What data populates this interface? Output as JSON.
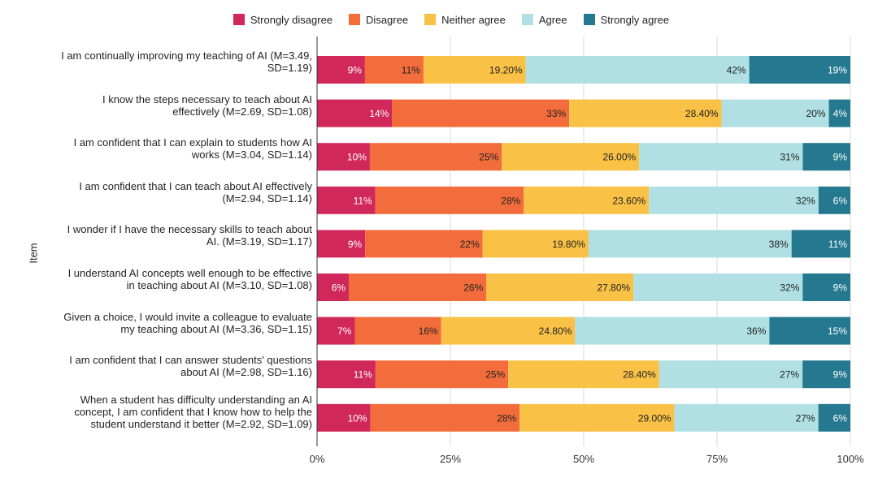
{
  "chart_data": {
    "type": "bar",
    "orientation": "horizontal",
    "stacked": true,
    "ylabel": "Item",
    "xlabel": "",
    "xlim": [
      0,
      100
    ],
    "x_ticks": [
      "0%",
      "25%",
      "50%",
      "75%",
      "100%"
    ],
    "legend_position": "top-center",
    "categories": [
      "I am continually improving my teaching of AI (M=3.49, SD=1.19)",
      "I know the steps necessary to teach about AI effectively (M=2.69, SD=1.08)",
      "I am confident that I can explain to students how AI works (M=3.04, SD=1.14)",
      "I am confident that I can teach about AI effectively (M=2.94, SD=1.14)",
      "I wonder if I have the necessary skills to teach about AI. (M=3.19, SD=1.17)",
      "I understand AI concepts well enough to be effective in teaching about AI (M=3.10, SD=1.08)",
      "Given a choice, I would invite a colleague to evaluate my teaching about AI (M=3.36, SD=1.15)",
      "I am confident that I can answer students' questions about AI (M=2.98, SD=1.16)",
      "When a student has difficulty understanding an AI concept, I am confident that I know how to help the student understand it better (M=2.92, SD=1.09)"
    ],
    "category_lines": [
      [
        "I am continually improving my teaching of AI (M=3.49,",
        "SD=1.19)"
      ],
      [
        "I know the steps necessary to teach about AI",
        "effectively (M=2.69, SD=1.08)"
      ],
      [
        "I am confident that I can explain to students how AI",
        "works (M=3.04, SD=1.14)"
      ],
      [
        "I am confident that I can teach about AI effectively",
        "(M=2.94, SD=1.14)"
      ],
      [
        "I wonder if I have the necessary skills to teach about",
        "AI. (M=3.19, SD=1.17)"
      ],
      [
        "I understand AI concepts well enough to be effective",
        "in teaching about AI (M=3.10, SD=1.08)"
      ],
      [
        "Given a choice, I would invite a colleague to evaluate",
        "my teaching about AI (M=3.36, SD=1.15)"
      ],
      [
        "I am confident that I can answer students' questions",
        "about AI (M=2.98, SD=1.16)"
      ],
      [
        "When a student has difficulty understanding an AI",
        "concept, I am confident that I know how to help the",
        "student understand it better (M=2.92, SD=1.09)"
      ]
    ],
    "series": [
      {
        "name": "Strongly disagree",
        "color": "#d1285b",
        "label_color": "#ffffff",
        "values": [
          9,
          14,
          10,
          11,
          9,
          6,
          7,
          11,
          10
        ],
        "labels": [
          "9%",
          "14%",
          "10%",
          "11%",
          "9%",
          "6%",
          "7%",
          "11%",
          "10%"
        ]
      },
      {
        "name": "Disagree",
        "color": "#f26d3b",
        "label_color": "#222222",
        "values": [
          11,
          33,
          25,
          28,
          22,
          26,
          16,
          25,
          28
        ],
        "labels": [
          "11%",
          "33%",
          "25%",
          "28%",
          "22%",
          "26%",
          "16%",
          "25%",
          "28%"
        ]
      },
      {
        "name": "Neither agree",
        "color": "#f9c146",
        "label_color": "#222222",
        "values": [
          19.2,
          28.4,
          26.0,
          23.6,
          19.8,
          27.8,
          24.8,
          28.4,
          29.0
        ],
        "labels": [
          "19.20%",
          "28.40%",
          "26.00%",
          "23.60%",
          "19.80%",
          "27.80%",
          "24.80%",
          "28.40%",
          "29.00%"
        ]
      },
      {
        "name": "Agree",
        "color": "#b0e0e3",
        "label_color": "#222222",
        "values": [
          42,
          20,
          31,
          32,
          38,
          32,
          36,
          27,
          27
        ],
        "labels": [
          "42%",
          "20%",
          "31%",
          "32%",
          "38%",
          "32%",
          "36%",
          "27%",
          "27%"
        ]
      },
      {
        "name": "Strongly agree",
        "color": "#24788f",
        "label_color": "#ffffff",
        "values": [
          19,
          4,
          9,
          6,
          11,
          9,
          15,
          9,
          6
        ],
        "labels": [
          "19%",
          "4%",
          "9%",
          "6%",
          "11%",
          "9%",
          "15%",
          "9%",
          "6%"
        ]
      }
    ]
  }
}
